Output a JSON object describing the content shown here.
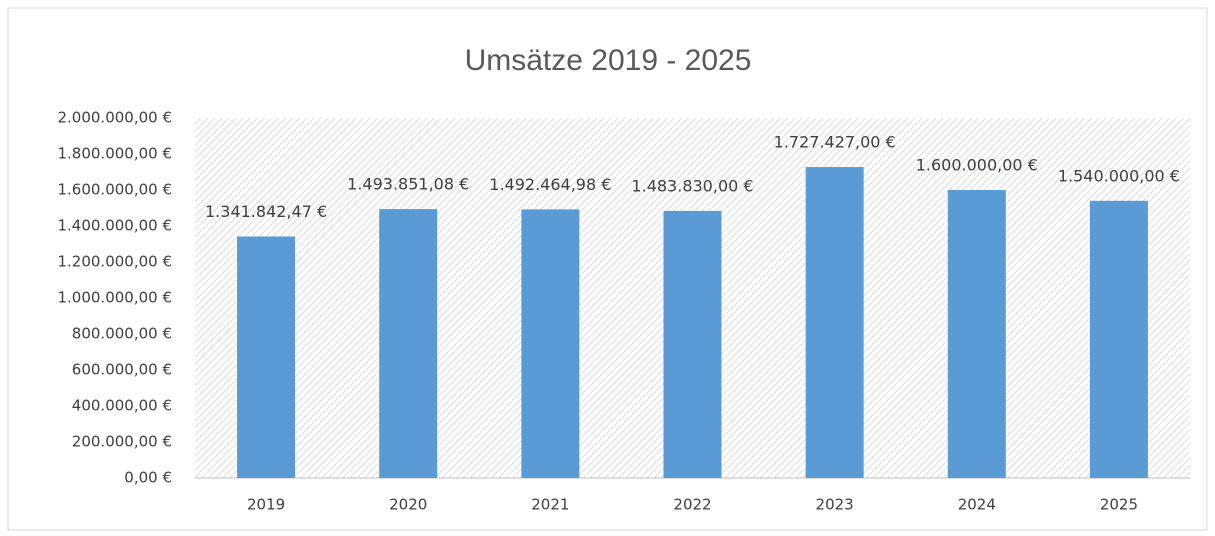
{
  "chart_data": {
    "type": "bar",
    "title": "Umsätze 2019 - 2025",
    "categories": [
      "2019",
      "2020",
      "2021",
      "2022",
      "2023",
      "2024",
      "2025"
    ],
    "values": [
      1341842.47,
      1493851.08,
      1492464.98,
      1483830.0,
      1727427.0,
      1600000.0,
      1540000.0
    ],
    "value_labels": [
      "1.341.842,47 €",
      "1.493.851,08 €",
      "1.492.464,98 €",
      "1.483.830,00 €",
      "1.727.427,00 €",
      "1.600.000,00 €",
      "1.540.000,00 €"
    ],
    "color": "#5b9bd5",
    "ylim": [
      0,
      2000000
    ],
    "yticks": [
      {
        "value": 0,
        "label": "0,00 €"
      },
      {
        "value": 200000,
        "label": "200.000,00 €"
      },
      {
        "value": 400000,
        "label": "400.000,00 €"
      },
      {
        "value": 600000,
        "label": "600.000,00 €"
      },
      {
        "value": 800000,
        "label": "800.000,00 €"
      },
      {
        "value": 1000000,
        "label": "1.000.000,00 €"
      },
      {
        "value": 1200000,
        "label": "1.200.000,00 €"
      },
      {
        "value": 1400000,
        "label": "1.400.000,00 €"
      },
      {
        "value": 1600000,
        "label": "1.600.000,00 €"
      },
      {
        "value": 1800000,
        "label": "1.800.000,00 €"
      },
      {
        "value": 2000000,
        "label": "2.000.000,00 €"
      }
    ]
  }
}
